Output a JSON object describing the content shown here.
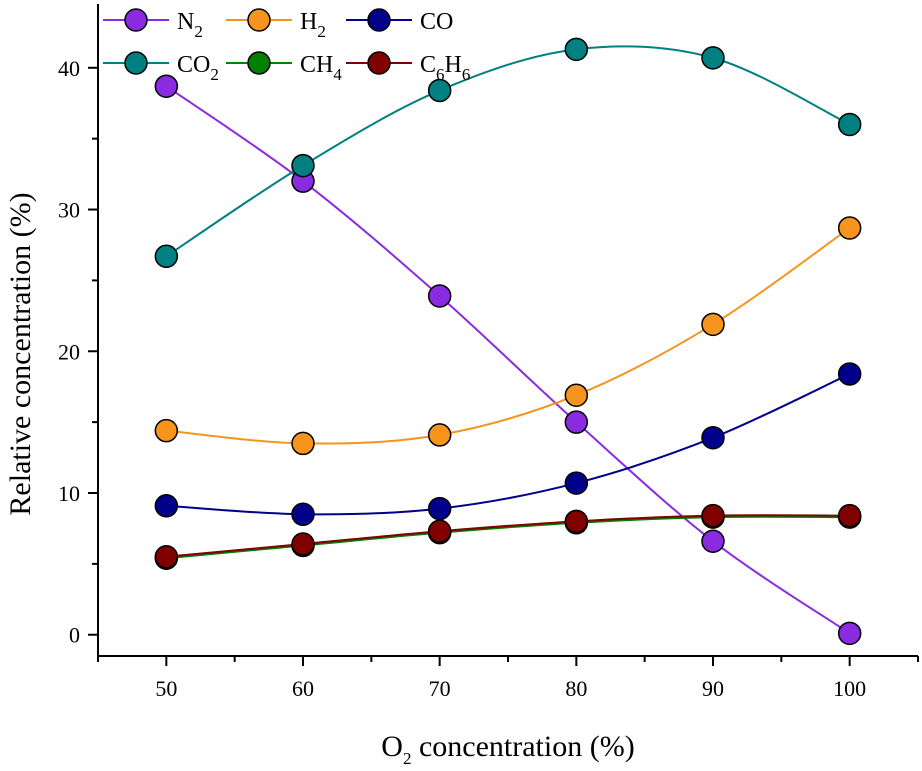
{
  "chart_data": {
    "type": "line",
    "x": [
      50,
      60,
      70,
      80,
      90,
      100
    ],
    "xlabel": {
      "prefix": "O",
      "sub": "2",
      "suffix": " concentration (%)"
    },
    "ylabel": "Relative concentration (%)",
    "xlim": [
      45,
      105
    ],
    "ylim": [
      -1.5,
      44.5
    ],
    "xticks": [
      "50",
      "60",
      "70",
      "80",
      "90",
      "100"
    ],
    "yticks": [
      "0",
      "10",
      "20",
      "30",
      "40"
    ],
    "legend_placement": "top-left",
    "grid": false,
    "series": [
      {
        "id": "n2",
        "label": [
          {
            "t": "N"
          },
          {
            "t": "2",
            "sub": true
          }
        ],
        "color": "#8a2be2",
        "values": [
          38.7,
          32.0,
          23.9,
          15.0,
          6.6,
          0.1
        ]
      },
      {
        "id": "h2",
        "label": [
          {
            "t": "H"
          },
          {
            "t": "2",
            "sub": true
          }
        ],
        "color": "#f7941d",
        "values": [
          14.4,
          13.5,
          14.1,
          16.9,
          21.9,
          28.7
        ]
      },
      {
        "id": "co",
        "label": [
          {
            "t": "CO"
          }
        ],
        "color": "#00008b",
        "values": [
          9.1,
          8.5,
          8.9,
          10.7,
          13.9,
          18.4
        ]
      },
      {
        "id": "co2",
        "label": [
          {
            "t": "CO"
          },
          {
            "t": "2",
            "sub": true
          }
        ],
        "color": "#008080",
        "values": [
          26.7,
          33.1,
          38.4,
          41.3,
          40.7,
          36.0
        ]
      },
      {
        "id": "ch4",
        "label": [
          {
            "t": "CH"
          },
          {
            "t": "4",
            "sub": true
          }
        ],
        "color": "#008000",
        "values": [
          5.4,
          6.3,
          7.2,
          7.9,
          8.3,
          8.3
        ]
      },
      {
        "id": "c6h6",
        "label": [
          {
            "t": "C"
          },
          {
            "t": "6",
            "sub": true
          },
          {
            "t": "H"
          },
          {
            "t": "6",
            "sub": true
          }
        ],
        "color": "#800000",
        "values": [
          5.5,
          6.4,
          7.3,
          8.0,
          8.4,
          8.4
        ]
      }
    ]
  }
}
